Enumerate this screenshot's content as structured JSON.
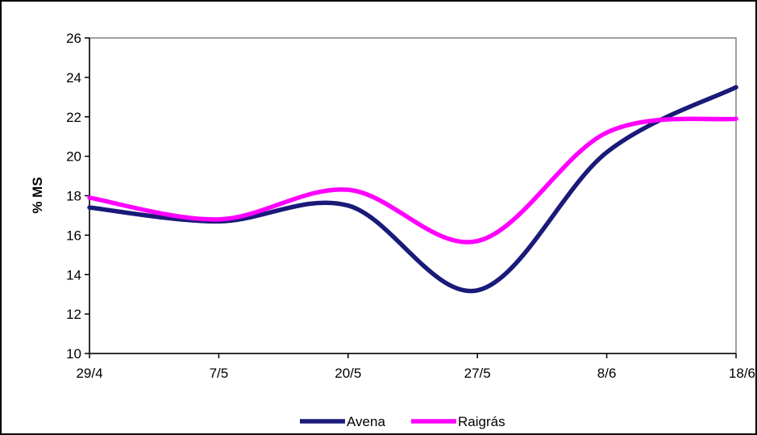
{
  "colors": {
    "avena": "#1a1a7a",
    "raigras": "#ff00ff",
    "axis": "#808080",
    "tick": "#000000",
    "border": "#000000"
  },
  "chart_data": {
    "type": "line",
    "categories": [
      "29/4",
      "7/5",
      "20/5",
      "27/5",
      "8/6",
      "18/6"
    ],
    "ylabel": "% MS",
    "xlabel": "",
    "title": "",
    "ylim": [
      10,
      26
    ],
    "yticks": [
      10,
      12,
      14,
      16,
      18,
      20,
      22,
      24,
      26
    ],
    "grid": false,
    "legend": "bottom",
    "smooth": true,
    "series": [
      {
        "name": "Avena",
        "values": [
          17.4,
          16.7,
          17.5,
          13.2,
          20.2,
          23.5
        ]
      },
      {
        "name": "Raigrás",
        "values": [
          17.9,
          16.8,
          18.3,
          15.7,
          21.2,
          21.9
        ]
      }
    ]
  }
}
